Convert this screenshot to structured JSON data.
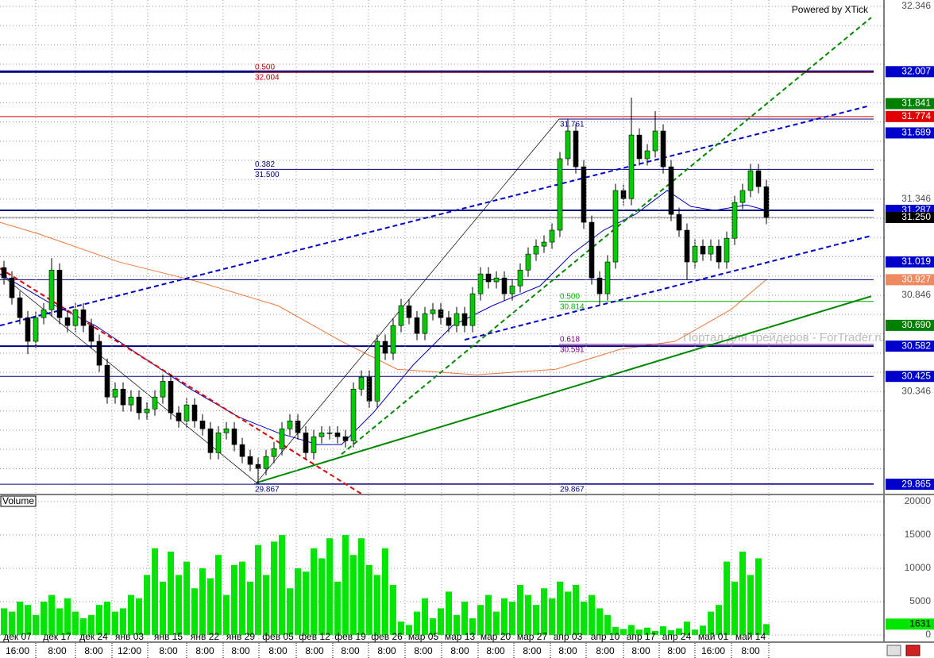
{
  "chart_data": {
    "type": "candlestick",
    "credit": "Powered by XTick",
    "watermark": "Портал для трейдеров - ForTrader.ru",
    "up_color": "#00cc00",
    "down_color": "#000000",
    "open": [
      30.99,
      30.936,
      30.833,
      30.73,
      30.607,
      30.73,
      30.771,
      30.977,
      30.73,
      30.689,
      30.771,
      30.689,
      30.607,
      30.483,
      30.318,
      30.359,
      30.277,
      30.318,
      30.236,
      30.256,
      30.318,
      30.4,
      30.236,
      30.194,
      30.277,
      30.194,
      30.153,
      30.029,
      30.132,
      30.153,
      30.071,
      30.009,
      29.968,
      29.947,
      30.009,
      30.05,
      30.153,
      30.194,
      30.132,
      30.029,
      30.112,
      30.132,
      30.132,
      30.112,
      30.091,
      30.359,
      30.421,
      30.297,
      30.607,
      30.545,
      30.689,
      30.792,
      30.73,
      30.648,
      30.751,
      30.771,
      30.73,
      30.689,
      30.751,
      30.689,
      30.854,
      30.957,
      30.916,
      30.936,
      30.854,
      30.895,
      30.977,
      31.06,
      31.101,
      31.122,
      31.184,
      31.555,
      31.699,
      31.513,
      31.225,
      30.936,
      30.854,
      31.019,
      31.39,
      31.348,
      31.678,
      31.555,
      31.596,
      31.699,
      31.513,
      31.266,
      31.184,
      31.019,
      31.101,
      31.06,
      31.101,
      31.019,
      31.142,
      31.328,
      31.39,
      31.493,
      31.41
    ],
    "high": [
      31.025,
      30.971,
      30.868,
      30.765,
      30.765,
      30.806,
      31.039,
      31.012,
      30.765,
      30.806,
      30.806,
      30.724,
      30.642,
      30.518,
      30.394,
      30.394,
      30.353,
      30.353,
      30.291,
      30.353,
      30.435,
      30.435,
      30.271,
      30.312,
      30.312,
      30.229,
      30.188,
      30.167,
      30.188,
      30.188,
      30.106,
      30.044,
      30.003,
      30.044,
      30.085,
      30.188,
      30.229,
      30.229,
      30.167,
      30.147,
      30.167,
      30.167,
      30.167,
      30.147,
      30.394,
      30.456,
      30.456,
      30.642,
      30.642,
      30.724,
      30.827,
      30.827,
      30.765,
      30.786,
      30.806,
      30.806,
      30.765,
      30.786,
      30.786,
      30.889,
      30.992,
      30.992,
      30.971,
      30.971,
      30.93,
      31.012,
      31.095,
      31.136,
      31.157,
      31.219,
      31.59,
      31.761,
      31.734,
      31.548,
      31.26,
      30.971,
      31.054,
      31.425,
      31.425,
      31.872,
      31.713,
      31.631,
      31.802,
      31.734,
      31.548,
      31.301,
      31.219,
      31.136,
      31.136,
      31.136,
      31.136,
      31.177,
      31.363,
      31.425,
      31.528,
      31.528,
      31.445
    ],
    "low": [
      30.901,
      30.798,
      30.695,
      30.54,
      30.572,
      30.695,
      30.736,
      30.695,
      30.654,
      30.654,
      30.654,
      30.572,
      30.448,
      30.283,
      30.283,
      30.242,
      30.242,
      30.201,
      30.201,
      30.221,
      30.283,
      30.201,
      30.159,
      30.159,
      30.159,
      30.118,
      29.994,
      29.994,
      30.097,
      30.036,
      29.974,
      29.933,
      29.867,
      29.912,
      29.974,
      30.015,
      30.118,
      30.097,
      29.994,
      29.994,
      30.077,
      30.097,
      30.077,
      30.056,
      30.056,
      30.324,
      30.262,
      30.262,
      30.51,
      30.51,
      30.654,
      30.695,
      30.613,
      30.613,
      30.716,
      30.695,
      30.654,
      30.654,
      30.654,
      30.654,
      30.819,
      30.881,
      30.881,
      30.819,
      30.819,
      30.86,
      30.942,
      31.025,
      31.066,
      31.087,
      31.149,
      31.52,
      31.478,
      31.19,
      30.901,
      30.792,
      30.819,
      30.984,
      31.313,
      31.313,
      31.52,
      31.52,
      31.561,
      31.478,
      31.231,
      31.149,
      30.928,
      30.984,
      31.025,
      31.025,
      30.984,
      30.984,
      31.107,
      31.293,
      31.355,
      31.375,
      31.215
    ],
    "close": [
      30.936,
      30.833,
      30.73,
      30.607,
      30.73,
      30.771,
      30.977,
      30.73,
      30.689,
      30.771,
      30.689,
      30.607,
      30.483,
      30.318,
      30.359,
      30.277,
      30.318,
      30.236,
      30.256,
      30.318,
      30.4,
      30.236,
      30.194,
      30.277,
      30.194,
      30.153,
      30.029,
      30.132,
      30.153,
      30.071,
      30.009,
      29.968,
      29.947,
      30.009,
      30.05,
      30.153,
      30.194,
      30.132,
      30.029,
      30.112,
      30.132,
      30.132,
      30.112,
      30.091,
      30.359,
      30.421,
      30.297,
      30.607,
      30.545,
      30.689,
      30.792,
      30.73,
      30.648,
      30.751,
      30.771,
      30.73,
      30.689,
      30.751,
      30.689,
      30.854,
      30.957,
      30.916,
      30.936,
      30.854,
      30.895,
      30.977,
      31.06,
      31.101,
      31.122,
      31.184,
      31.555,
      31.699,
      31.513,
      31.225,
      30.936,
      30.854,
      31.019,
      31.39,
      31.348,
      31.678,
      31.555,
      31.596,
      31.699,
      31.513,
      31.266,
      31.184,
      31.019,
      31.101,
      31.06,
      31.101,
      31.019,
      31.142,
      31.328,
      31.39,
      31.493,
      31.41,
      31.25
    ],
    "xlim": [
      -0.5,
      110.8
    ],
    "xticks": [
      {
        "value": 1.7,
        "label": "дек 07"
      },
      {
        "value": 6.7,
        "label": "дек 17"
      },
      {
        "value": 11.3,
        "label": "дек 24"
      },
      {
        "value": 15.8,
        "label": "янв 03"
      },
      {
        "value": 20.7,
        "label": "янв 15"
      },
      {
        "value": 25.3,
        "label": "янв 22"
      },
      {
        "value": 29.8,
        "label": "янв 29"
      },
      {
        "value": 34.5,
        "label": "фев 05"
      },
      {
        "value": 39.1,
        "label": "фев 12"
      },
      {
        "value": 43.6,
        "label": "фев 19"
      },
      {
        "value": 48.2,
        "label": "фев 26"
      },
      {
        "value": 52.8,
        "label": "мар 05"
      },
      {
        "value": 57.4,
        "label": "мар 13"
      },
      {
        "value": 61.9,
        "label": "мар 20"
      },
      {
        "value": 66.5,
        "label": "мар 27"
      },
      {
        "value": 71,
        "label": "апр 03"
      },
      {
        "value": 75.7,
        "label": "апр 10"
      },
      {
        "value": 80.2,
        "label": "апр 17"
      },
      {
        "value": 84.7,
        "label": "апр 24"
      },
      {
        "value": 89.3,
        "label": "май 01"
      },
      {
        "value": 94,
        "label": "май 14"
      }
    ],
    "xticks_time": [
      "16:00",
      "8:00",
      "8:00",
      "12:00",
      "8:00",
      "8:00",
      "8:00",
      "8:00",
      "8:00",
      "8:00",
      "8:00",
      "8:00",
      "8:00",
      "8:00",
      "8:00",
      "8:00",
      "8:00",
      "8:00",
      "8:00",
      "16:00",
      "8:00"
    ],
    "ylim": [
      29.816,
      32.379
    ],
    "yticks": [
      32.346,
      31.346,
      30.846,
      30.346
    ],
    "ygrid": [
      32.346,
      32.246,
      32.146,
      32.046,
      31.946,
      31.846,
      31.746,
      31.646,
      31.546,
      31.446,
      31.346,
      31.246,
      31.146,
      31.046,
      30.946,
      30.846,
      30.746,
      30.646,
      30.546,
      30.446,
      30.346,
      30.246,
      30.146,
      30.046,
      29.946
    ],
    "volume": {
      "label": "Volume",
      "color": "#00e600",
      "ylim": [
        0,
        20952
      ],
      "yticks": [
        20000,
        15000,
        10000,
        5000,
        0
      ],
      "values": [
        4000,
        3500,
        5000,
        4500,
        3000,
        5000,
        6000,
        4000,
        5500,
        3500,
        2500,
        3000,
        4500,
        5000,
        3500,
        4000,
        6000,
        5500,
        9000,
        13000,
        8000,
        12500,
        9000,
        11000,
        7000,
        10000,
        8500,
        12000,
        6000,
        10500,
        11000,
        8000,
        13500,
        9000,
        14000,
        15000,
        7000,
        10000,
        9500,
        13000,
        11500,
        14500,
        8000,
        15000,
        12000,
        14500,
        10500,
        9000,
        13000,
        7500,
        2000,
        1500,
        3500,
        5500,
        2500,
        4000,
        6500,
        3000,
        5000,
        2500,
        4500,
        6000,
        3500,
        5500,
        5000,
        7500,
        6000,
        4500,
        7000,
        5500,
        8000,
        6500,
        7500,
        5000,
        6000,
        4000,
        3000,
        1200,
        900,
        1500,
        800,
        1100,
        600,
        1300,
        700,
        1000,
        2000,
        800,
        1400,
        3500,
        4500,
        11000,
        8000,
        12500,
        9000,
        11500,
        1631
      ]
    },
    "moving_averages": [
      {
        "color": "#f07838",
        "x": [
          -0.5,
          4.5,
          14.5,
          24.5,
          34.5,
          42.5,
          49.5,
          59.5,
          69.5,
          77.5,
          84.5,
          91.5,
          96
        ],
        "values": [
          31.225,
          31.163,
          31.019,
          30.916,
          30.792,
          30.607,
          30.462,
          30.433,
          30.462,
          30.565,
          30.607,
          30.771,
          30.928
        ]
      },
      {
        "color": "#0000c0",
        "x": [
          -0.5,
          5.5,
          11.5,
          17.5,
          23.5,
          29.5,
          34.5,
          39.5,
          42.5,
          46.5,
          51.5,
          56.5,
          61.5,
          67.5,
          71.5,
          75.5,
          79.5,
          83.5,
          86.5,
          89.5,
          93.5,
          96
        ],
        "values": [
          30.957,
          30.813,
          30.689,
          30.524,
          30.359,
          30.215,
          30.132,
          30.071,
          30.071,
          30.236,
          30.483,
          30.689,
          30.792,
          30.895,
          31.06,
          31.184,
          31.266,
          31.39,
          31.307,
          31.287,
          31.315,
          31.287
        ]
      }
    ],
    "trend_lines": [
      {
        "color": "#0000cc",
        "dash": true,
        "width": 2,
        "x": [
          -0.5,
          108.7
        ],
        "values": [
          30.689,
          31.827
        ]
      },
      {
        "color": "#0000cc",
        "dash": true,
        "width": 2,
        "x": [
          58,
          109.2
        ],
        "values": [
          30.615,
          31.155
        ]
      },
      {
        "color": "#008800",
        "dash": true,
        "width": 2,
        "x": [
          42.5,
          109.2
        ],
        "values": [
          30.021,
          32.288
        ]
      },
      {
        "color": "#008800",
        "dash": false,
        "width": 2,
        "x": [
          31.8,
          109.2
        ],
        "values": [
          29.873,
          30.841
        ]
      },
      {
        "color": "#dd0000",
        "dash": true,
        "width": 2,
        "x": [
          -0.5,
          45
        ],
        "values": [
          30.986,
          29.815
        ]
      },
      {
        "color": "#000000",
        "dash": false,
        "width": 0.7,
        "x": [
          -0.5,
          31.8
        ],
        "values": [
          30.957,
          29.873
        ]
      },
      {
        "color": "#000000",
        "dash": false,
        "width": 0.7,
        "x": [
          31.8,
          69.9
        ],
        "values": [
          29.873,
          31.761
        ]
      }
    ],
    "levels": [
      {
        "value": 32.007,
        "color": "#000080",
        "width": 3,
        "line": true,
        "box": "#0000cc"
      },
      {
        "value": 31.841,
        "color": "#008000",
        "line": false,
        "box": "#008000"
      },
      {
        "value": 31.774,
        "color": "#e00000",
        "width": 1,
        "line": true,
        "box": "#e00000"
      },
      {
        "value": 31.689,
        "color": "#0000cc",
        "line": false,
        "box": "#0000cc"
      },
      {
        "value": 31.287,
        "color": "#000080",
        "width": 2,
        "line": true,
        "box": "#0000cc"
      },
      {
        "value": 31.25,
        "label": "31.250",
        "color": "#808080",
        "width": 1,
        "line": true,
        "box": "#000000"
      },
      {
        "value": 31.019,
        "color": "#0000cc",
        "line": false,
        "box": "#0000cc"
      },
      {
        "value": 30.927,
        "color": "#000080",
        "width": 1,
        "line": true,
        "box": "#f08860"
      },
      {
        "value": 30.69,
        "label": "30.690",
        "color": "#008000",
        "line": false,
        "box": "#008000"
      },
      {
        "value": 30.582,
        "color": "#000080",
        "width": 2,
        "line": true,
        "box": "#0000cc"
      },
      {
        "value": 30.425,
        "color": "#000080",
        "width": 1,
        "line": true,
        "box": "#0000cc"
      },
      {
        "value": 29.865,
        "color": "#000080",
        "width": 1,
        "line": true,
        "box": "#0000cc"
      }
    ],
    "fib_levels": [
      {
        "x": 31.5,
        "value": 32.004,
        "ratio": {
          "value": 0.5,
          "label": "0.500"
        },
        "color": "#c00000"
      },
      {
        "x": 31.5,
        "value": 31.5,
        "value_label": "31.500",
        "ratio": {
          "value": 0.382,
          "label": "0.382"
        },
        "color": "#000080"
      },
      {
        "x": 31.5,
        "value": 29.867,
        "color": "#000080"
      },
      {
        "x": 69.9,
        "value": 31.761,
        "color": "#000080"
      },
      {
        "x": 69.9,
        "value": 30.814,
        "ratio": {
          "value": 0.5,
          "label": "0.500"
        },
        "color": "#00b000"
      },
      {
        "x": 69.9,
        "value": 30.591,
        "ratio": {
          "value": 0.618,
          "label": "0.618"
        },
        "color": "#800080"
      },
      {
        "x": 69.9,
        "value": 29.867,
        "color": "#000080"
      }
    ]
  }
}
